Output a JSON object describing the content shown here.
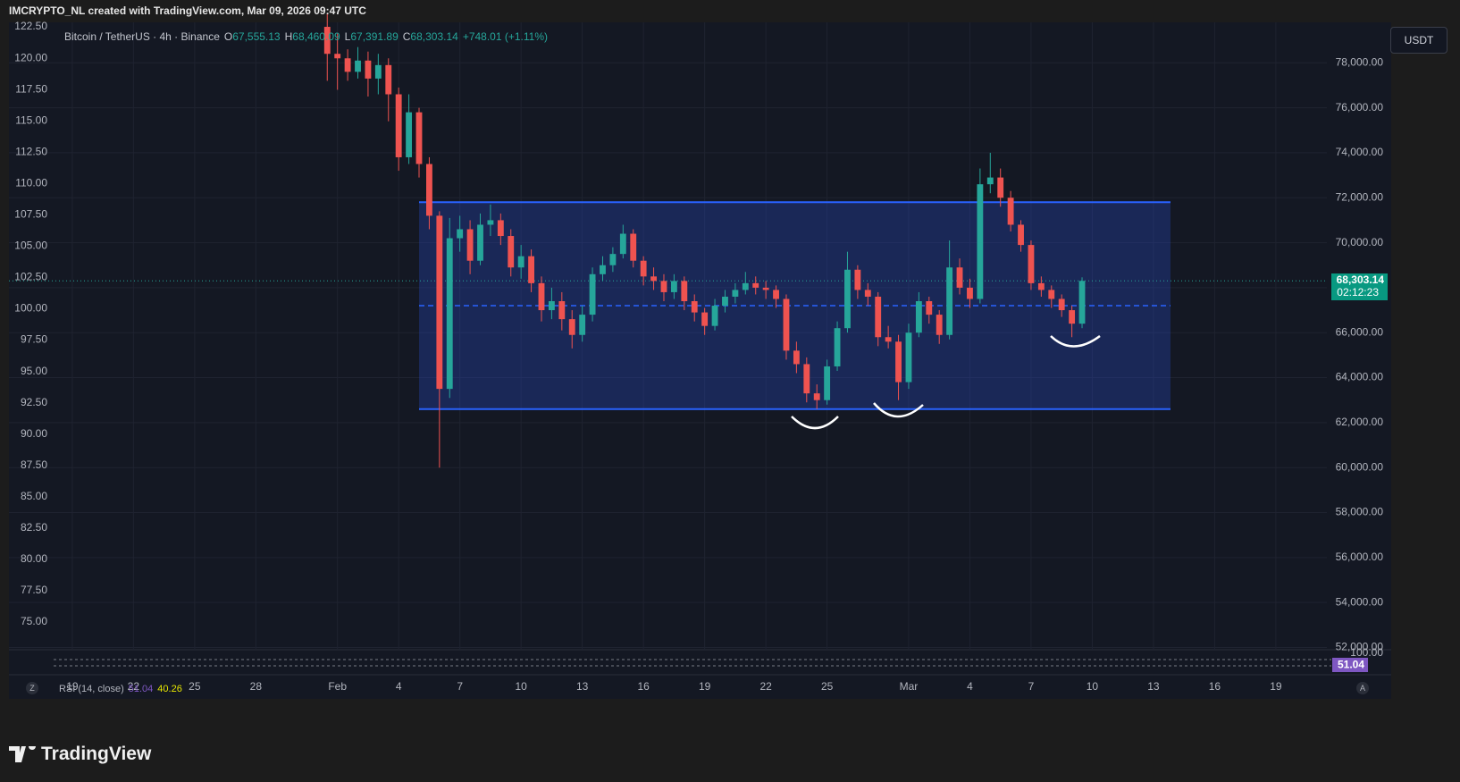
{
  "header": "IMCRYPTO_NL created with TradingView.com, Mar 09, 2026 09:47 UTC",
  "legend": {
    "symbol": "Bitcoin / TetherUS · 4h · Binance",
    "ohlc": [
      {
        "key": "O",
        "value": "67,555.13"
      },
      {
        "key": "H",
        "value": "68,460.09"
      },
      {
        "key": "L",
        "value": "67,391.89"
      },
      {
        "key": "C",
        "value": "68,303.14"
      }
    ],
    "change": "+748.01 (+1.11%)"
  },
  "currency": "USDT",
  "last_price": {
    "value": 68303.14,
    "label": "68,303.14",
    "countdown": "02:12:23"
  },
  "rsi": {
    "label": "RSI (14, close)",
    "value": "51.04",
    "ma": "40.26",
    "top_label": "100.00",
    "badge": "51.04"
  },
  "scale_buttons": [
    "Z",
    "A"
  ],
  "brand": "TradingView",
  "chart_data": {
    "type": "candlestick",
    "up_color": "#26a69a",
    "down_color": "#ef5350",
    "grid": true,
    "x": [
      "2026-01-31 12:00",
      "2026-02-01 00:00",
      "2026-02-01 12:00",
      "2026-02-02 00:00",
      "2026-02-02 12:00",
      "2026-02-03 00:00",
      "2026-02-03 12:00",
      "2026-02-04 00:00",
      "2026-02-04 12:00",
      "2026-02-05 00:00",
      "2026-02-05 12:00",
      "2026-02-06 00:00",
      "2026-02-06 12:00",
      "2026-02-07 00:00",
      "2026-02-07 12:00",
      "2026-02-08 00:00",
      "2026-02-08 12:00",
      "2026-02-09 00:00",
      "2026-02-09 12:00",
      "2026-02-10 00:00",
      "2026-02-10 12:00",
      "2026-02-11 00:00",
      "2026-02-11 12:00",
      "2026-02-12 00:00",
      "2026-02-12 12:00",
      "2026-02-13 00:00",
      "2026-02-13 12:00",
      "2026-02-14 00:00",
      "2026-02-14 12:00",
      "2026-02-15 00:00",
      "2026-02-15 12:00",
      "2026-02-16 00:00",
      "2026-02-16 12:00",
      "2026-02-17 00:00",
      "2026-02-17 12:00",
      "2026-02-18 00:00",
      "2026-02-18 12:00",
      "2026-02-19 00:00",
      "2026-02-19 12:00",
      "2026-02-20 00:00",
      "2026-02-20 12:00",
      "2026-02-21 00:00",
      "2026-02-21 12:00",
      "2026-02-22 00:00",
      "2026-02-22 12:00",
      "2026-02-23 00:00",
      "2026-02-23 12:00",
      "2026-02-24 00:00",
      "2026-02-24 12:00",
      "2026-02-25 00:00",
      "2026-02-25 12:00",
      "2026-02-26 00:00",
      "2026-02-26 12:00",
      "2026-02-27 00:00",
      "2026-02-27 12:00",
      "2026-02-28 00:00",
      "2026-02-28 12:00",
      "2026-03-01 00:00",
      "2026-03-01 12:00",
      "2026-03-02 00:00",
      "2026-03-02 12:00",
      "2026-03-03 00:00",
      "2026-03-03 12:00",
      "2026-03-04 00:00",
      "2026-03-04 12:00",
      "2026-03-05 00:00",
      "2026-03-05 12:00",
      "2026-03-06 00:00",
      "2026-03-06 12:00",
      "2026-03-07 00:00",
      "2026-03-07 12:00",
      "2026-03-08 00:00",
      "2026-03-08 12:00",
      "2026-03-09 00:00",
      "2026-03-09 12:00"
    ],
    "open": [
      79600,
      78400,
      78200,
      77600,
      78100,
      77300,
      77900,
      76600,
      73800,
      75800,
      73500,
      71200,
      63500,
      70200,
      70600,
      69200,
      70800,
      71000,
      70300,
      68900,
      69400,
      68200,
      67000,
      67400,
      66600,
      65900,
      66800,
      68600,
      69000,
      69500,
      70400,
      69200,
      68500,
      68300,
      67800,
      68300,
      67400,
      66900,
      66300,
      67200,
      67600,
      67900,
      68200,
      68000,
      67900,
      67500,
      65200,
      64600,
      63300,
      63000,
      64500,
      66200,
      68800,
      67900,
      67600,
      65800,
      65600,
      63800,
      66000,
      67400,
      66800,
      65900,
      68900,
      68000,
      67500,
      72600,
      72900,
      72000,
      70800,
      69900,
      68200,
      67900,
      67500,
      67000,
      66400
    ],
    "high": [
      80200,
      79300,
      78600,
      78700,
      78500,
      78400,
      78200,
      76900,
      76600,
      76000,
      73800,
      71400,
      71100,
      71200,
      71000,
      71300,
      71700,
      71300,
      70600,
      69900,
      69700,
      68500,
      68000,
      67800,
      67000,
      67200,
      68900,
      69400,
      69800,
      70800,
      70600,
      69400,
      68900,
      68600,
      68600,
      68500,
      67700,
      67100,
      67500,
      67900,
      68200,
      68700,
      68500,
      68300,
      68100,
      67700,
      65600,
      64900,
      63700,
      64800,
      66500,
      69600,
      69000,
      68200,
      67800,
      66300,
      65900,
      66400,
      67800,
      67600,
      67000,
      70100,
      69300,
      68400,
      73300,
      74000,
      73300,
      72300,
      71000,
      70100,
      68500,
      68100,
      67700,
      67200,
      68460.09
    ],
    "low": [
      77200,
      76800,
      77200,
      77300,
      76500,
      76600,
      75400,
      73200,
      73500,
      72900,
      70600,
      60000,
      63100,
      69600,
      68600,
      69000,
      70300,
      69900,
      68500,
      68400,
      67800,
      66500,
      66600,
      66100,
      65300,
      65600,
      66500,
      68300,
      68700,
      69300,
      68900,
      68100,
      67900,
      67400,
      67500,
      67000,
      66500,
      65900,
      66100,
      66900,
      67300,
      67700,
      67700,
      67500,
      67100,
      64800,
      64200,
      62900,
      62600,
      62800,
      64300,
      66000,
      67500,
      67200,
      65400,
      65300,
      63000,
      63500,
      65800,
      66400,
      65500,
      65700,
      67700,
      67100,
      67300,
      72200,
      71600,
      70500,
      69600,
      67900,
      67600,
      67100,
      66700,
      65800,
      66200
    ],
    "close": [
      78400,
      78200,
      77600,
      78100,
      77300,
      77900,
      76600,
      73800,
      75800,
      73500,
      71200,
      63500,
      70200,
      70600,
      69200,
      70800,
      71000,
      70300,
      68900,
      69400,
      68200,
      67000,
      67400,
      66600,
      65900,
      66800,
      68600,
      69000,
      69500,
      70400,
      69200,
      68500,
      68300,
      67800,
      68300,
      67400,
      66900,
      66300,
      67200,
      67600,
      67900,
      68200,
      68000,
      67900,
      67500,
      65200,
      64600,
      63300,
      63000,
      64500,
      66200,
      68800,
      67900,
      67600,
      65800,
      65600,
      63800,
      66000,
      67400,
      66800,
      65900,
      68900,
      68000,
      67500,
      72600,
      72900,
      72000,
      70800,
      69900,
      68200,
      67900,
      67500,
      67000,
      66400,
      68303.14
    ],
    "range_box": {
      "start": "2026-02-05 00:00",
      "end": "2026-03-13 20:00",
      "top": 71800,
      "bottom": 62600,
      "mid": 67200
    },
    "xlim": [
      "2026-01-15 21:30",
      "2026-03-21 12:00"
    ],
    "xticks": [
      {
        "value": "2026-01-19",
        "label": "19"
      },
      {
        "value": "2026-01-22",
        "label": "22"
      },
      {
        "value": "2026-01-25",
        "label": "25"
      },
      {
        "value": "2026-01-28",
        "label": "28"
      },
      {
        "value": "2026-02-01",
        "label": "Feb"
      },
      {
        "value": "2026-02-04",
        "label": "4"
      },
      {
        "value": "2026-02-07",
        "label": "7"
      },
      {
        "value": "2026-02-10",
        "label": "10"
      },
      {
        "value": "2026-02-13",
        "label": "13"
      },
      {
        "value": "2026-02-16",
        "label": "16"
      },
      {
        "value": "2026-02-19",
        "label": "19"
      },
      {
        "value": "2026-02-22",
        "label": "22"
      },
      {
        "value": "2026-02-25",
        "label": "25"
      },
      {
        "value": "2026-03-01",
        "label": "Mar"
      },
      {
        "value": "2026-03-04",
        "label": "4"
      },
      {
        "value": "2026-03-07",
        "label": "7"
      },
      {
        "value": "2026-03-10",
        "label": "10"
      },
      {
        "value": "2026-03-13",
        "label": "13"
      },
      {
        "value": "2026-03-16",
        "label": "16"
      },
      {
        "value": "2026-03-19",
        "label": "19"
      }
    ],
    "ylim": [
      51900,
      79800
    ],
    "yticks": [
      {
        "value": 78000,
        "label": "78,000.00"
      },
      {
        "value": 76000,
        "label": "76,000.00"
      },
      {
        "value": 74000,
        "label": "74,000.00"
      },
      {
        "value": 72000,
        "label": "72,000.00"
      },
      {
        "value": 70000,
        "label": "70,000.00"
      },
      {
        "value": 68000,
        "label": "68,000.00"
      },
      {
        "value": 66000,
        "label": "66,000.00"
      },
      {
        "value": 64000,
        "label": "64,000.00"
      },
      {
        "value": 62000,
        "label": "62,000.00"
      },
      {
        "value": 60000,
        "label": "60,000.00"
      },
      {
        "value": 58000,
        "label": "58,000.00"
      },
      {
        "value": 56000,
        "label": "56,000.00"
      },
      {
        "value": 54000,
        "label": "54,000.00"
      },
      {
        "value": 52000,
        "label": "52,000.00"
      }
    ],
    "y2lim": [
      72.79,
      122.86
    ],
    "y2ticks": [
      {
        "value": 122.5,
        "label": "122.50"
      },
      {
        "value": 120,
        "label": "120.00"
      },
      {
        "value": 117.5,
        "label": "117.50"
      },
      {
        "value": 115,
        "label": "115.00"
      },
      {
        "value": 112.5,
        "label": "112.50"
      },
      {
        "value": 110,
        "label": "110.00"
      },
      {
        "value": 107.5,
        "label": "107.50"
      },
      {
        "value": 105,
        "label": "105.00"
      },
      {
        "value": 102.5,
        "label": "102.50"
      },
      {
        "value": 100,
        "label": "100.00"
      },
      {
        "value": 97.5,
        "label": "97.50"
      },
      {
        "value": 95,
        "label": "95.00"
      },
      {
        "value": 92.5,
        "label": "92.50"
      },
      {
        "value": 90,
        "label": "90.00"
      },
      {
        "value": 87.5,
        "label": "87.50"
      },
      {
        "value": 85,
        "label": "85.00"
      },
      {
        "value": 82.5,
        "label": "82.50"
      },
      {
        "value": 80,
        "label": "80.00"
      },
      {
        "value": 77.5,
        "label": "77.50"
      },
      {
        "value": 75,
        "label": "75.00"
      }
    ]
  }
}
